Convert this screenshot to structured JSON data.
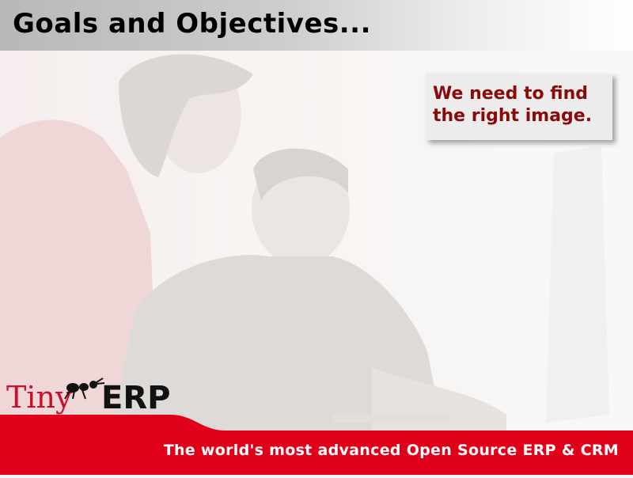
{
  "slide": {
    "title": "Goals and Objectives...",
    "note_text": "We need to find the right image.",
    "footer_tagline": "The world's most advanced Open Source ERP & CRM"
  },
  "logo": {
    "part1": "Tiny",
    "part2": "ERP",
    "icon": "ant-icon"
  },
  "colors": {
    "accent_red": "#e1001a",
    "note_text": "#8a0a0a",
    "logo_red": "#c8102e"
  }
}
